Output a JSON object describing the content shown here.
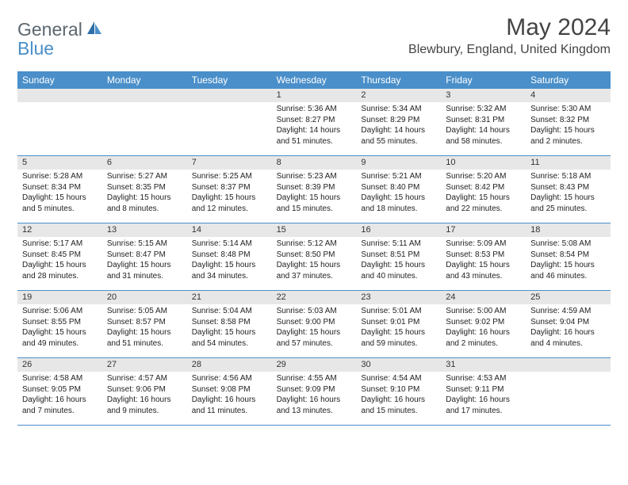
{
  "logo": {
    "general": "General",
    "blue": "Blue",
    "icon_color": "#2f6fa8"
  },
  "title": "May 2024",
  "location": "Blewbury, England, United Kingdom",
  "colors": {
    "header_bg": "#4a8fc9",
    "header_text": "#ffffff",
    "daynum_bg": "#e7e7e7",
    "week_border": "#4a8fc9",
    "page_bg": "#ffffff",
    "text": "#222222"
  },
  "font": {
    "family": "Arial",
    "title_size_pt": 22,
    "location_size_pt": 12,
    "header_size_pt": 9,
    "body_size_pt": 7.5
  },
  "day_labels": [
    "Sunday",
    "Monday",
    "Tuesday",
    "Wednesday",
    "Thursday",
    "Friday",
    "Saturday"
  ],
  "weeks": [
    [
      {
        "n": "",
        "sunrise": "",
        "sunset": "",
        "daylight": ""
      },
      {
        "n": "",
        "sunrise": "",
        "sunset": "",
        "daylight": ""
      },
      {
        "n": "",
        "sunrise": "",
        "sunset": "",
        "daylight": ""
      },
      {
        "n": "1",
        "sunrise": "Sunrise: 5:36 AM",
        "sunset": "Sunset: 8:27 PM",
        "daylight": "Daylight: 14 hours and 51 minutes."
      },
      {
        "n": "2",
        "sunrise": "Sunrise: 5:34 AM",
        "sunset": "Sunset: 8:29 PM",
        "daylight": "Daylight: 14 hours and 55 minutes."
      },
      {
        "n": "3",
        "sunrise": "Sunrise: 5:32 AM",
        "sunset": "Sunset: 8:31 PM",
        "daylight": "Daylight: 14 hours and 58 minutes."
      },
      {
        "n": "4",
        "sunrise": "Sunrise: 5:30 AM",
        "sunset": "Sunset: 8:32 PM",
        "daylight": "Daylight: 15 hours and 2 minutes."
      }
    ],
    [
      {
        "n": "5",
        "sunrise": "Sunrise: 5:28 AM",
        "sunset": "Sunset: 8:34 PM",
        "daylight": "Daylight: 15 hours and 5 minutes."
      },
      {
        "n": "6",
        "sunrise": "Sunrise: 5:27 AM",
        "sunset": "Sunset: 8:35 PM",
        "daylight": "Daylight: 15 hours and 8 minutes."
      },
      {
        "n": "7",
        "sunrise": "Sunrise: 5:25 AM",
        "sunset": "Sunset: 8:37 PM",
        "daylight": "Daylight: 15 hours and 12 minutes."
      },
      {
        "n": "8",
        "sunrise": "Sunrise: 5:23 AM",
        "sunset": "Sunset: 8:39 PM",
        "daylight": "Daylight: 15 hours and 15 minutes."
      },
      {
        "n": "9",
        "sunrise": "Sunrise: 5:21 AM",
        "sunset": "Sunset: 8:40 PM",
        "daylight": "Daylight: 15 hours and 18 minutes."
      },
      {
        "n": "10",
        "sunrise": "Sunrise: 5:20 AM",
        "sunset": "Sunset: 8:42 PM",
        "daylight": "Daylight: 15 hours and 22 minutes."
      },
      {
        "n": "11",
        "sunrise": "Sunrise: 5:18 AM",
        "sunset": "Sunset: 8:43 PM",
        "daylight": "Daylight: 15 hours and 25 minutes."
      }
    ],
    [
      {
        "n": "12",
        "sunrise": "Sunrise: 5:17 AM",
        "sunset": "Sunset: 8:45 PM",
        "daylight": "Daylight: 15 hours and 28 minutes."
      },
      {
        "n": "13",
        "sunrise": "Sunrise: 5:15 AM",
        "sunset": "Sunset: 8:47 PM",
        "daylight": "Daylight: 15 hours and 31 minutes."
      },
      {
        "n": "14",
        "sunrise": "Sunrise: 5:14 AM",
        "sunset": "Sunset: 8:48 PM",
        "daylight": "Daylight: 15 hours and 34 minutes."
      },
      {
        "n": "15",
        "sunrise": "Sunrise: 5:12 AM",
        "sunset": "Sunset: 8:50 PM",
        "daylight": "Daylight: 15 hours and 37 minutes."
      },
      {
        "n": "16",
        "sunrise": "Sunrise: 5:11 AM",
        "sunset": "Sunset: 8:51 PM",
        "daylight": "Daylight: 15 hours and 40 minutes."
      },
      {
        "n": "17",
        "sunrise": "Sunrise: 5:09 AM",
        "sunset": "Sunset: 8:53 PM",
        "daylight": "Daylight: 15 hours and 43 minutes."
      },
      {
        "n": "18",
        "sunrise": "Sunrise: 5:08 AM",
        "sunset": "Sunset: 8:54 PM",
        "daylight": "Daylight: 15 hours and 46 minutes."
      }
    ],
    [
      {
        "n": "19",
        "sunrise": "Sunrise: 5:06 AM",
        "sunset": "Sunset: 8:55 PM",
        "daylight": "Daylight: 15 hours and 49 minutes."
      },
      {
        "n": "20",
        "sunrise": "Sunrise: 5:05 AM",
        "sunset": "Sunset: 8:57 PM",
        "daylight": "Daylight: 15 hours and 51 minutes."
      },
      {
        "n": "21",
        "sunrise": "Sunrise: 5:04 AM",
        "sunset": "Sunset: 8:58 PM",
        "daylight": "Daylight: 15 hours and 54 minutes."
      },
      {
        "n": "22",
        "sunrise": "Sunrise: 5:03 AM",
        "sunset": "Sunset: 9:00 PM",
        "daylight": "Daylight: 15 hours and 57 minutes."
      },
      {
        "n": "23",
        "sunrise": "Sunrise: 5:01 AM",
        "sunset": "Sunset: 9:01 PM",
        "daylight": "Daylight: 15 hours and 59 minutes."
      },
      {
        "n": "24",
        "sunrise": "Sunrise: 5:00 AM",
        "sunset": "Sunset: 9:02 PM",
        "daylight": "Daylight: 16 hours and 2 minutes."
      },
      {
        "n": "25",
        "sunrise": "Sunrise: 4:59 AM",
        "sunset": "Sunset: 9:04 PM",
        "daylight": "Daylight: 16 hours and 4 minutes."
      }
    ],
    [
      {
        "n": "26",
        "sunrise": "Sunrise: 4:58 AM",
        "sunset": "Sunset: 9:05 PM",
        "daylight": "Daylight: 16 hours and 7 minutes."
      },
      {
        "n": "27",
        "sunrise": "Sunrise: 4:57 AM",
        "sunset": "Sunset: 9:06 PM",
        "daylight": "Daylight: 16 hours and 9 minutes."
      },
      {
        "n": "28",
        "sunrise": "Sunrise: 4:56 AM",
        "sunset": "Sunset: 9:08 PM",
        "daylight": "Daylight: 16 hours and 11 minutes."
      },
      {
        "n": "29",
        "sunrise": "Sunrise: 4:55 AM",
        "sunset": "Sunset: 9:09 PM",
        "daylight": "Daylight: 16 hours and 13 minutes."
      },
      {
        "n": "30",
        "sunrise": "Sunrise: 4:54 AM",
        "sunset": "Sunset: 9:10 PM",
        "daylight": "Daylight: 16 hours and 15 minutes."
      },
      {
        "n": "31",
        "sunrise": "Sunrise: 4:53 AM",
        "sunset": "Sunset: 9:11 PM",
        "daylight": "Daylight: 16 hours and 17 minutes."
      },
      {
        "n": "",
        "sunrise": "",
        "sunset": "",
        "daylight": ""
      }
    ]
  ]
}
